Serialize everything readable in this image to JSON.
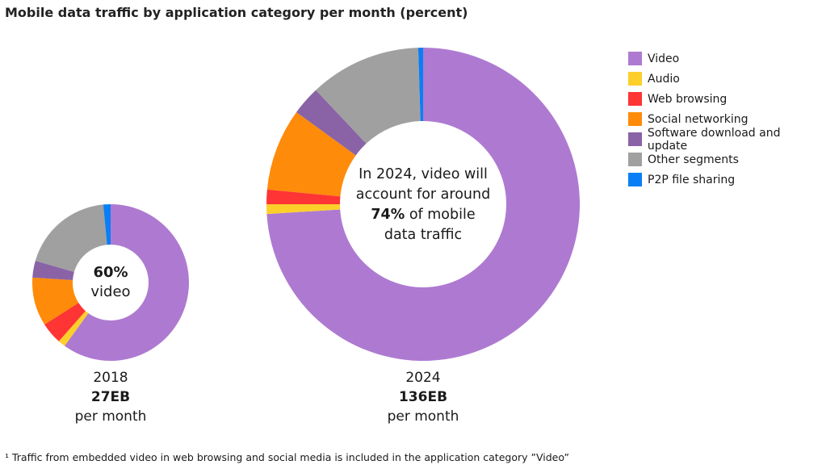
{
  "title": "Mobile data traffic by application category per month (percent)",
  "chart_data": {
    "type": "pie",
    "title": "Mobile data traffic by application category per month (percent)",
    "categories": [
      "Video",
      "Audio",
      "Web browsing",
      "Social networking",
      "Software download and update",
      "Other segments",
      "P2P file sharing"
    ],
    "colors": [
      "#ae7ad1",
      "#fccf2b",
      "#ff3434",
      "#ff8b0b",
      "#8a63a6",
      "#a0a0a0",
      "#0a7ff5"
    ],
    "legend_position": "right",
    "charts": [
      {
        "year": "2018",
        "total": "27EB",
        "unit": "per month",
        "center_value": "60%",
        "center_label": "video",
        "values": [
          60,
          1.5,
          4.5,
          10,
          3.5,
          19,
          1.5
        ]
      },
      {
        "year": "2024",
        "total": "136EB",
        "unit": "per month",
        "center_lines": [
          "In 2024, video will",
          "account for around"
        ],
        "center_value": "74%",
        "center_suffix": " of mobile",
        "center_last": "data traffic",
        "values": [
          74,
          1,
          1.5,
          8.5,
          3,
          11.5,
          0.5
        ]
      }
    ]
  },
  "footnote": "¹ Traffic from embedded video in web browsing and social media is included in the application category ”Video”"
}
